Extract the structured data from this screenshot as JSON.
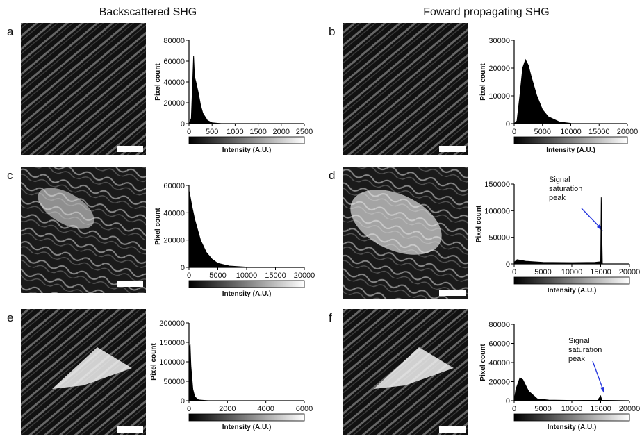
{
  "column_titles": [
    "Backscattered SHG",
    "Foward propagating SHG"
  ],
  "chart_data": [
    {
      "type": "area",
      "panel_label": "a",
      "xlabel": "Intensity (A.U.)",
      "ylabel": "Pixel count",
      "color": "#000000",
      "x": [
        0,
        50,
        80,
        100,
        120,
        150,
        200,
        250,
        300,
        400,
        500,
        700
      ],
      "values": [
        0,
        5000,
        40000,
        65000,
        45000,
        40000,
        30000,
        18000,
        10000,
        3000,
        800,
        0
      ],
      "xlim": [
        0,
        2500
      ],
      "xticks": [
        0,
        500,
        1000,
        1500,
        2000,
        2500
      ],
      "ylim": [
        0,
        80000
      ],
      "yticks": [
        0,
        20000,
        40000,
        60000,
        80000
      ]
    },
    {
      "type": "area",
      "panel_label": "b",
      "xlabel": "Intensity (A.U.)",
      "ylabel": "Pixel count",
      "color": "#000000",
      "x": [
        0,
        500,
        1000,
        1500,
        2000,
        2500,
        3000,
        4000,
        5000,
        6000,
        8000,
        10000
      ],
      "values": [
        0,
        1000,
        10000,
        20000,
        23000,
        21000,
        17000,
        10000,
        5000,
        2500,
        600,
        100
      ],
      "xlim": [
        0,
        20000
      ],
      "xticks": [
        0,
        5000,
        10000,
        15000,
        20000
      ],
      "ylim": [
        0,
        30000
      ],
      "yticks": [
        0,
        10000,
        20000,
        30000
      ]
    },
    {
      "type": "area",
      "panel_label": "c",
      "xlabel": "Intensity (A.U.)",
      "ylabel": "Pixel count",
      "color": "#000000",
      "x": [
        0,
        200,
        500,
        1000,
        2000,
        3000,
        4000,
        5000,
        7000,
        10000,
        15000
      ],
      "values": [
        56000,
        52000,
        45000,
        35000,
        20000,
        11000,
        6000,
        3000,
        1000,
        200,
        0
      ],
      "xlim": [
        0,
        20000
      ],
      "xticks": [
        0,
        5000,
        10000,
        15000,
        20000
      ],
      "ylim": [
        0,
        60000
      ],
      "yticks": [
        0,
        20000,
        40000,
        60000
      ]
    },
    {
      "type": "area",
      "panel_label": "d",
      "xlabel": "Intensity (A.U.)",
      "ylabel": "Pixel count",
      "color": "#000000",
      "annotation": [
        "Signal",
        "saturation",
        "peak"
      ],
      "x": [
        0,
        500,
        1000,
        2000,
        5000,
        10000,
        14000,
        15000,
        15100,
        15300
      ],
      "values": [
        3000,
        8000,
        7000,
        5000,
        3000,
        2500,
        3000,
        4000,
        125000,
        0
      ],
      "xlim": [
        0,
        20000
      ],
      "xticks": [
        0,
        5000,
        10000,
        15000,
        20000
      ],
      "ylim": [
        0,
        150000
      ],
      "yticks": [
        0,
        50000,
        100000,
        150000
      ]
    },
    {
      "type": "area",
      "panel_label": "e",
      "xlabel": "Intensity (A.U.)",
      "ylabel": "Pixel count",
      "color": "#000000",
      "x": [
        0,
        30,
        60,
        100,
        200,
        300,
        500,
        1000
      ],
      "values": [
        0,
        140000,
        145000,
        90000,
        30000,
        10000,
        2000,
        0
      ],
      "xlim": [
        0,
        6000
      ],
      "xticks": [
        0,
        2000,
        4000,
        6000
      ],
      "ylim": [
        0,
        200000
      ],
      "yticks": [
        0,
        50000,
        100000,
        150000,
        200000
      ]
    },
    {
      "type": "area",
      "panel_label": "f",
      "xlabel": "Intensity (A.U.)",
      "ylabel": "Pixel count",
      "color": "#000000",
      "annotation": [
        "Signal",
        "saturation",
        "peak"
      ],
      "x": [
        0,
        300,
        1000,
        1500,
        2500,
        4000,
        6000,
        10000,
        14500,
        15000,
        15200,
        20000
      ],
      "values": [
        0,
        12000,
        24000,
        22000,
        10000,
        2000,
        600,
        300,
        500,
        5000,
        500,
        0
      ],
      "xlim": [
        0,
        20000
      ],
      "xticks": [
        0,
        5000,
        10000,
        15000,
        20000
      ],
      "ylim": [
        0,
        80000
      ],
      "yticks": [
        0,
        20000,
        40000,
        60000,
        80000
      ]
    }
  ]
}
